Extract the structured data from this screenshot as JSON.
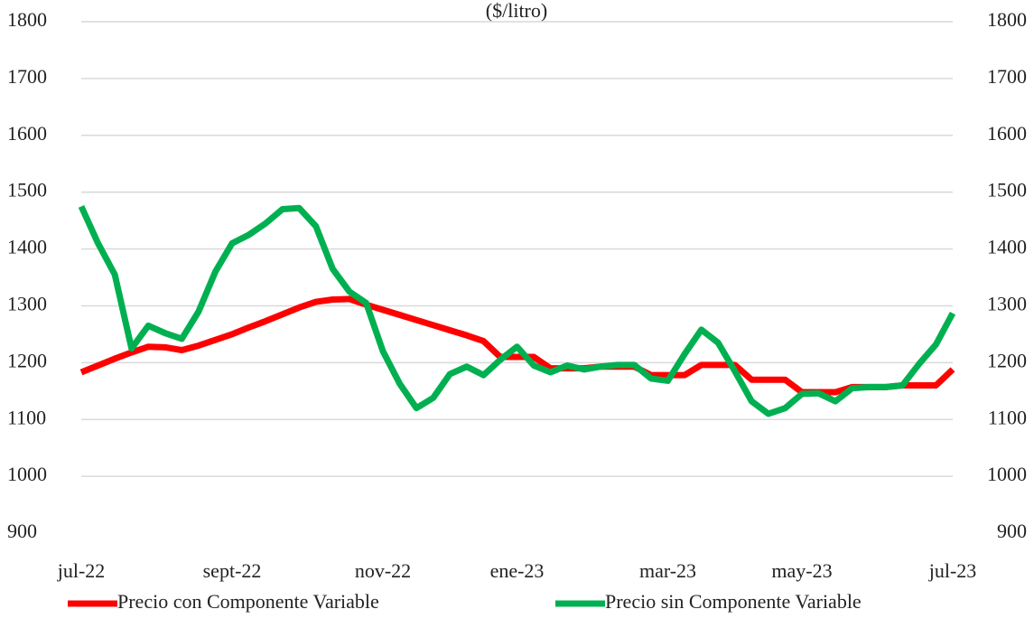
{
  "chart_data": {
    "type": "line",
    "subtitle": "($/litro)",
    "categories": [
      "jul-22",
      null,
      null,
      null,
      null,
      null,
      null,
      null,
      null,
      "sept-22",
      null,
      null,
      null,
      null,
      null,
      null,
      null,
      null,
      "nov-22",
      null,
      null,
      null,
      null,
      null,
      null,
      null,
      "ene-23",
      null,
      null,
      null,
      null,
      null,
      null,
      null,
      null,
      "mar-23",
      null,
      null,
      null,
      null,
      null,
      null,
      null,
      "may-23",
      null,
      null,
      null,
      null,
      null,
      null,
      null,
      null,
      "jul-23"
    ],
    "series": [
      {
        "name": "Precio con Componente Variable",
        "color": "#ff0000",
        "values": [
          1183,
          1195,
          1207,
          1218,
          1228,
          1227,
          1222,
          1230,
          1240,
          1250,
          1262,
          1273,
          1285,
          1297,
          1307,
          1311,
          1312,
          1302,
          1293,
          1284,
          1275,
          1266,
          1257,
          1248,
          1238,
          1210,
          1210,
          1210,
          1190,
          1190,
          1190,
          1193,
          1193,
          1193,
          1178,
          1178,
          1178,
          1196,
          1196,
          1196,
          1170,
          1170,
          1170,
          1148,
          1148,
          1148,
          1157,
          1157,
          1157,
          1160,
          1160,
          1160,
          1188
        ]
      },
      {
        "name": "Precio sin Componente Variable",
        "color": "#00b050",
        "values": [
          1475,
          1410,
          1355,
          1225,
          1265,
          1252,
          1242,
          1290,
          1360,
          1410,
          1425,
          1445,
          1470,
          1472,
          1440,
          1365,
          1325,
          1305,
          1220,
          1163,
          1120,
          1138,
          1180,
          1193,
          1178,
          1205,
          1228,
          1195,
          1183,
          1195,
          1188,
          1193,
          1196,
          1196,
          1172,
          1168,
          1215,
          1258,
          1235,
          1185,
          1132,
          1110,
          1120,
          1145,
          1146,
          1132,
          1155,
          1157,
          1157,
          1160,
          1198,
          1232,
          1287
        ]
      }
    ],
    "ylim": [
      900,
      1800
    ],
    "yticks": [
      900,
      1000,
      1100,
      1200,
      1300,
      1400,
      1500,
      1600,
      1700,
      1800
    ],
    "y2lim": [
      900,
      1800
    ],
    "y2ticks": [
      900,
      1000,
      1100,
      1200,
      1300,
      1400,
      1500,
      1600,
      1700,
      1800
    ],
    "grid": true,
    "legend": "bottom"
  }
}
